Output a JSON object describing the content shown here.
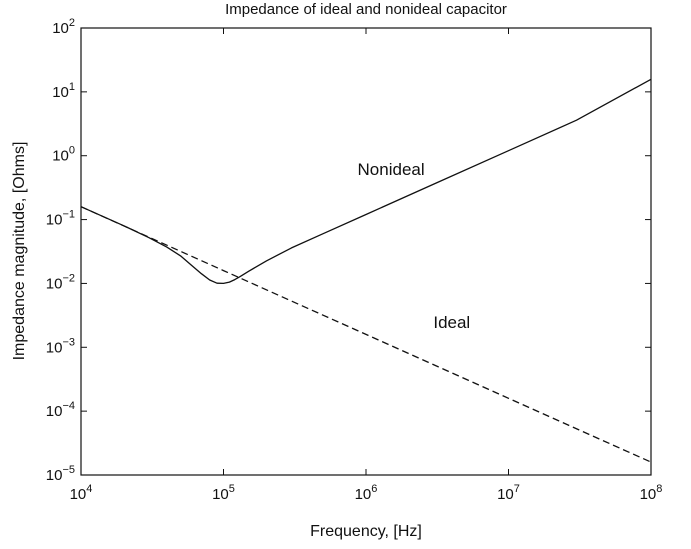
{
  "chart_data": {
    "type": "line",
    "title": "Impedance of ideal and nonideal capacitor",
    "xlabel": "Frequency, [Hz]",
    "ylabel": "Impedance magnitude, [Ohms]",
    "xscale": "log",
    "yscale": "log",
    "xlim": [
      10000,
      100000000
    ],
    "ylim": [
      1e-05,
      100
    ],
    "x_ticks": [
      {
        "value": 10000,
        "base": "10",
        "exp": "4"
      },
      {
        "value": 100000,
        "base": "10",
        "exp": "5"
      },
      {
        "value": 1000000,
        "base": "10",
        "exp": "6"
      },
      {
        "value": 10000000,
        "base": "10",
        "exp": "7"
      },
      {
        "value": 100000000,
        "base": "10",
        "exp": "8"
      }
    ],
    "y_ticks": [
      {
        "value": 1e-05,
        "base": "10",
        "exp": "−5"
      },
      {
        "value": 0.0001,
        "base": "10",
        "exp": "−4"
      },
      {
        "value": 0.001,
        "base": "10",
        "exp": "−3"
      },
      {
        "value": 0.01,
        "base": "10",
        "exp": "−2"
      },
      {
        "value": 0.1,
        "base": "10",
        "exp": "−1"
      },
      {
        "value": 1,
        "base": "10",
        "exp": "0"
      },
      {
        "value": 10,
        "base": "10",
        "exp": "1"
      },
      {
        "value": 100,
        "base": "10",
        "exp": "2"
      }
    ],
    "series": [
      {
        "name": "Nonideal",
        "style": "solid",
        "color": "#111111",
        "x": [
          10000,
          20000,
          30000,
          40000,
          50000,
          60000,
          70000,
          80000,
          90000,
          100000,
          110000,
          120000,
          130000,
          150000,
          200000,
          300000,
          500000,
          1000000,
          3000000,
          10000000,
          30000000,
          100000000
        ],
        "values": [
          0.159,
          0.08,
          0.052,
          0.037,
          0.027,
          0.019,
          0.0142,
          0.0113,
          0.0101,
          0.01,
          0.0105,
          0.0115,
          0.0127,
          0.0155,
          0.0225,
          0.036,
          0.06,
          0.12,
          0.36,
          1.2,
          3.6,
          15.7
        ]
      },
      {
        "name": "Ideal",
        "style": "dashed",
        "color": "#111111",
        "x": [
          10000,
          100000,
          1000000,
          10000000,
          100000000
        ],
        "values": [
          0.159,
          0.0159,
          0.00159,
          0.000159,
          1.59e-05
        ]
      }
    ],
    "annotations": [
      {
        "text": "Nonideal",
        "x": 1500000,
        "y": 0.5
      },
      {
        "text": "Ideal",
        "x": 4000000,
        "y": 0.002
      }
    ]
  }
}
